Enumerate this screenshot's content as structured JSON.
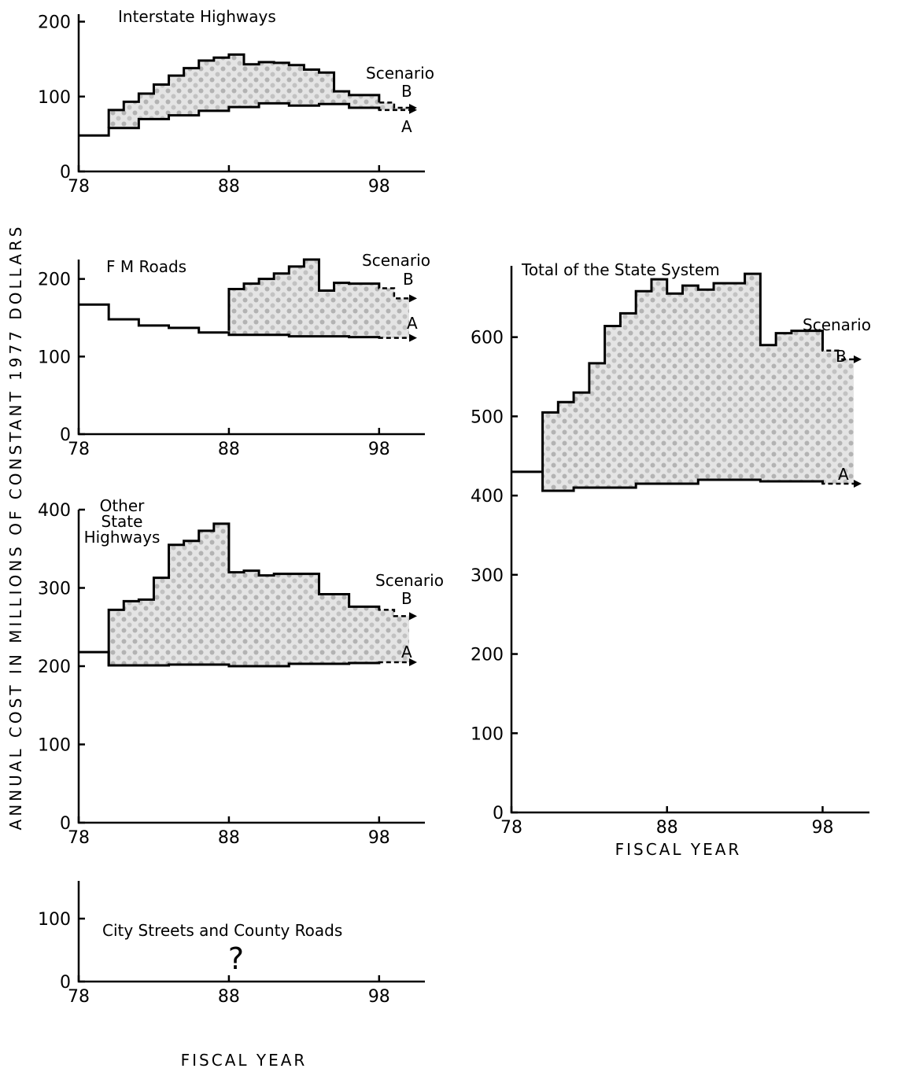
{
  "y_axis_label": "ANNUAL COST IN MILLIONS OF CONSTANT 1977 DOLLARS",
  "x_axis_label": "FISCAL YEAR",
  "chart_data": [
    {
      "type": "area",
      "title": "Interstate Highways",
      "xlabel": "",
      "ylabel": "",
      "xlim": [
        78,
        100
      ],
      "ylim": [
        0,
        210
      ],
      "xticks": [
        "78",
        "88",
        "98"
      ],
      "yticks": [
        "0",
        "100",
        "200"
      ],
      "scenario_label": "Scenario",
      "series": [
        {
          "name": "A",
          "x": [
            78,
            80,
            80,
            82,
            82,
            84,
            84,
            86,
            86,
            88,
            88,
            90,
            90,
            92,
            92,
            94,
            94,
            96,
            96,
            98,
            98,
            100
          ],
          "y": [
            48,
            48,
            58,
            58,
            70,
            70,
            75,
            75,
            81,
            81,
            86,
            86,
            91,
            91,
            88,
            88,
            90,
            90,
            85,
            85,
            82,
            82
          ]
        },
        {
          "name": "B",
          "x": [
            80,
            80,
            81,
            81,
            82,
            82,
            83,
            83,
            84,
            84,
            85,
            85,
            86,
            86,
            87,
            87,
            88,
            88,
            89,
            89,
            90,
            90,
            91,
            91,
            92,
            92,
            93,
            93,
            94,
            94,
            95,
            95,
            96,
            96,
            98,
            98,
            99,
            99,
            100
          ],
          "y": [
            58,
            82,
            82,
            93,
            93,
            104,
            104,
            116,
            116,
            128,
            128,
            138,
            138,
            148,
            148,
            152,
            152,
            156,
            156,
            143,
            143,
            146,
            146,
            145,
            145,
            142,
            142,
            136,
            136,
            132,
            132,
            107,
            107,
            102,
            102,
            92,
            92,
            85,
            85
          ]
        }
      ]
    },
    {
      "type": "area",
      "title": "F M Roads",
      "xlabel": "",
      "ylabel": "",
      "xlim": [
        78,
        100
      ],
      "ylim": [
        0,
        225
      ],
      "xticks": [
        "78",
        "88",
        "98"
      ],
      "yticks": [
        "0",
        "100",
        "200"
      ],
      "scenario_label": "Scenario",
      "series": [
        {
          "name": "A",
          "x": [
            78,
            80,
            80,
            82,
            82,
            84,
            84,
            86,
            86,
            88,
            88,
            92,
            92,
            96,
            96,
            98,
            98,
            100
          ],
          "y": [
            167,
            167,
            148,
            148,
            140,
            140,
            137,
            137,
            131,
            131,
            128,
            128,
            126,
            126,
            125,
            125,
            124,
            124
          ]
        },
        {
          "name": "B",
          "x": [
            88,
            88,
            89,
            89,
            90,
            90,
            91,
            91,
            92,
            92,
            93,
            93,
            94,
            94,
            95,
            95,
            96,
            96,
            98,
            98,
            99,
            99,
            100
          ],
          "y": [
            133,
            187,
            187,
            194,
            194,
            200,
            200,
            207,
            207,
            216,
            216,
            225,
            225,
            185,
            185,
            195,
            195,
            194,
            194,
            188,
            188,
            175,
            175
          ]
        }
      ]
    },
    {
      "type": "area",
      "title": "Other State Highways",
      "xlabel": "",
      "ylabel": "",
      "xlim": [
        78,
        100
      ],
      "ylim": [
        0,
        400
      ],
      "xticks": [
        "78",
        "88",
        "98"
      ],
      "yticks": [
        "0",
        "100",
        "200",
        "300",
        "400"
      ],
      "scenario_label": "Scenario",
      "series": [
        {
          "name": "A",
          "x": [
            78,
            80,
            80,
            84,
            84,
            88,
            88,
            92,
            92,
            96,
            96,
            98,
            98,
            100
          ],
          "y": [
            218,
            218,
            201,
            201,
            202,
            202,
            200,
            200,
            203,
            203,
            204,
            204,
            205,
            205
          ]
        },
        {
          "name": "B",
          "x": [
            80,
            80,
            81,
            81,
            82,
            82,
            83,
            83,
            84,
            84,
            85,
            85,
            86,
            86,
            87,
            87,
            88,
            88,
            89,
            89,
            90,
            90,
            91,
            91,
            93,
            93,
            94,
            94,
            96,
            96,
            98,
            98,
            99,
            99,
            100
          ],
          "y": [
            200,
            272,
            272,
            283,
            283,
            285,
            285,
            313,
            313,
            355,
            355,
            360,
            360,
            373,
            373,
            382,
            382,
            320,
            320,
            322,
            322,
            316,
            316,
            318,
            318,
            318,
            318,
            292,
            292,
            276,
            276,
            272,
            272,
            264,
            264
          ]
        }
      ]
    },
    {
      "type": "area",
      "title": "Total of the State System",
      "xlabel": "FISCAL YEAR",
      "ylabel": "",
      "xlim": [
        78,
        100
      ],
      "ylim": [
        0,
        690
      ],
      "xticks": [
        "78",
        "88",
        "98"
      ],
      "yticks": [
        "0",
        "100",
        "200",
        "300",
        "400",
        "500",
        "600"
      ],
      "scenario_label": "Scenario",
      "series": [
        {
          "name": "A",
          "x": [
            78,
            80,
            80,
            82,
            82,
            86,
            86,
            90,
            90,
            94,
            94,
            98,
            98,
            100
          ],
          "y": [
            430,
            430,
            406,
            406,
            410,
            410,
            415,
            415,
            420,
            420,
            418,
            418,
            415,
            415
          ]
        },
        {
          "name": "B",
          "x": [
            80,
            80,
            81,
            81,
            82,
            82,
            83,
            83,
            84,
            84,
            85,
            85,
            86,
            86,
            87,
            87,
            88,
            88,
            89,
            89,
            90,
            90,
            91,
            91,
            93,
            93,
            94,
            94,
            95,
            95,
            96,
            96,
            98,
            98,
            99,
            99,
            100
          ],
          "y": [
            430,
            505,
            505,
            518,
            518,
            530,
            530,
            567,
            567,
            614,
            614,
            630,
            630,
            658,
            658,
            673,
            673,
            655,
            655,
            665,
            665,
            660,
            660,
            668,
            668,
            680,
            680,
            590,
            590,
            605,
            605,
            608,
            608,
            583,
            583,
            572,
            572
          ]
        }
      ]
    },
    {
      "type": "line",
      "title": "City Streets and County Roads",
      "xlabel": "FISCAL YEAR",
      "ylabel": "",
      "xlim": [
        78,
        100
      ],
      "ylim": [
        0,
        160
      ],
      "xticks": [
        "78",
        "88",
        "98"
      ],
      "yticks": [
        "0",
        "100"
      ],
      "annotation": "?",
      "series": []
    }
  ]
}
